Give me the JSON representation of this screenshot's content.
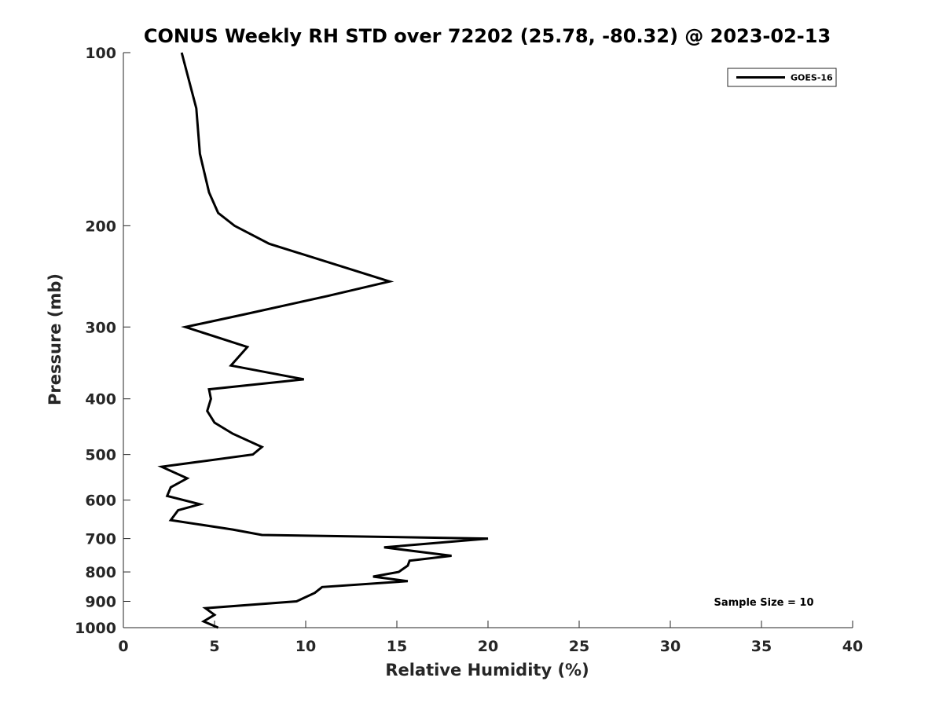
{
  "chart_data": {
    "type": "line",
    "title": "CONUS Weekly RH STD over 72202 (25.78, -80.32) @ 2023-02-13",
    "xlabel": "Relative Humidity (%)",
    "ylabel": "Pressure (mb)",
    "xlim": [
      0,
      40
    ],
    "ylim": [
      100,
      1000
    ],
    "y_scale": "log",
    "y_reversed": true,
    "x_ticks": [
      0,
      5,
      10,
      15,
      20,
      25,
      30,
      35,
      40
    ],
    "y_ticks": [
      100,
      200,
      300,
      400,
      500,
      600,
      700,
      800,
      900,
      1000
    ],
    "grid": false,
    "legend_position": "top-right",
    "line_color": "#000000",
    "annotation": "Sample Size = 10",
    "series": [
      {
        "name": "GOES-16",
        "points": [
          [
            3.2,
            100
          ],
          [
            4.0,
            125
          ],
          [
            4.2,
            150
          ],
          [
            4.7,
            175
          ],
          [
            5.2,
            190
          ],
          [
            6.1,
            200
          ],
          [
            8.0,
            215
          ],
          [
            14.6,
            250
          ],
          [
            11.2,
            265
          ],
          [
            6.7,
            285
          ],
          [
            3.4,
            300
          ],
          [
            6.8,
            325
          ],
          [
            5.9,
            350
          ],
          [
            9.9,
            370
          ],
          [
            4.7,
            385
          ],
          [
            4.8,
            400
          ],
          [
            4.6,
            420
          ],
          [
            5.0,
            440
          ],
          [
            6.0,
            460
          ],
          [
            7.6,
            485
          ],
          [
            7.1,
            500
          ],
          [
            2.1,
            525
          ],
          [
            3.5,
            550
          ],
          [
            2.6,
            570
          ],
          [
            2.4,
            590
          ],
          [
            4.2,
            610
          ],
          [
            3.0,
            625
          ],
          [
            2.6,
            650
          ],
          [
            6.0,
            675
          ],
          [
            7.6,
            690
          ],
          [
            20.0,
            700
          ],
          [
            14.3,
            725
          ],
          [
            18.0,
            750
          ],
          [
            15.7,
            765
          ],
          [
            15.6,
            780
          ],
          [
            15.1,
            800
          ],
          [
            13.7,
            815
          ],
          [
            15.6,
            830
          ],
          [
            10.9,
            850
          ],
          [
            10.5,
            870
          ],
          [
            9.5,
            900
          ],
          [
            4.5,
            925
          ],
          [
            5.0,
            950
          ],
          [
            4.4,
            975
          ],
          [
            5.2,
            1000
          ]
        ]
      }
    ]
  }
}
